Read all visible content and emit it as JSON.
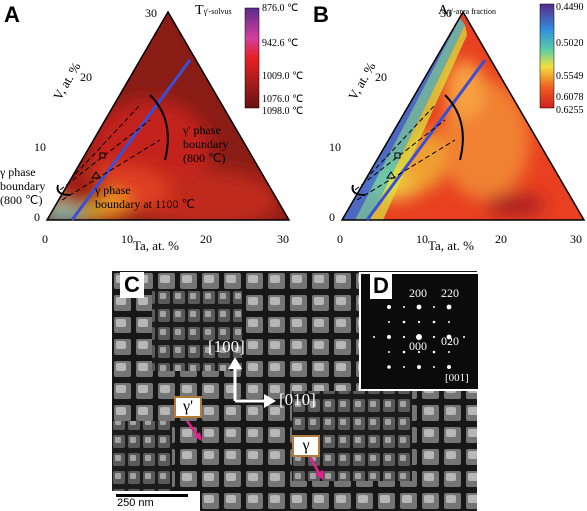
{
  "panelA": {
    "letter": "A",
    "title": "T",
    "title_sub": "γ'-solvus",
    "colorbar": [
      "876.0 ℃",
      "942.6 ℃",
      "1009.0 ℃",
      "1076.0 ℃",
      "1098.0 ℃"
    ],
    "v_ticks": [
      "0",
      "10",
      "20",
      "30"
    ],
    "ta_ticks": [
      "0",
      "10",
      "20",
      "30"
    ],
    "v_label": "V, at. %",
    "ta_label": "Ta, at. %",
    "ann_gamma_boundary": [
      "γ phase",
      "boundary",
      "(800 ℃)"
    ],
    "ann_gamma_prime": [
      "γ' phase",
      "boundary",
      "(800 ℃)"
    ],
    "ann_1100": [
      "γ phase",
      "boundary at 1100 ℃"
    ]
  },
  "panelB": {
    "letter": "B",
    "title": "A",
    "title_sub": "γ'-area fraction",
    "colorbar": [
      "0.4490",
      "0.5020",
      "0.5549",
      "0.6078",
      "0.6255"
    ],
    "v_ticks": [
      "0",
      "10",
      "20",
      "30"
    ],
    "ta_ticks": [
      "0",
      "10",
      "20",
      "30"
    ],
    "v_label": "V, at. %",
    "ta_label": "Ta, at. %"
  },
  "panelC": {
    "letter": "C",
    "dir_100": "[100]",
    "dir_010": "[010]",
    "gamma_prime": "γ'",
    "gamma": "γ",
    "scale": "250 nm"
  },
  "panelD": {
    "letter": "D",
    "spots": [
      "200",
      "220",
      "000",
      "020"
    ],
    "zone": "[001]"
  },
  "colors": {
    "blue_line": "#3a4fd6",
    "arrow_magenta": "#e0208c",
    "box_border": "#b47a3c"
  }
}
